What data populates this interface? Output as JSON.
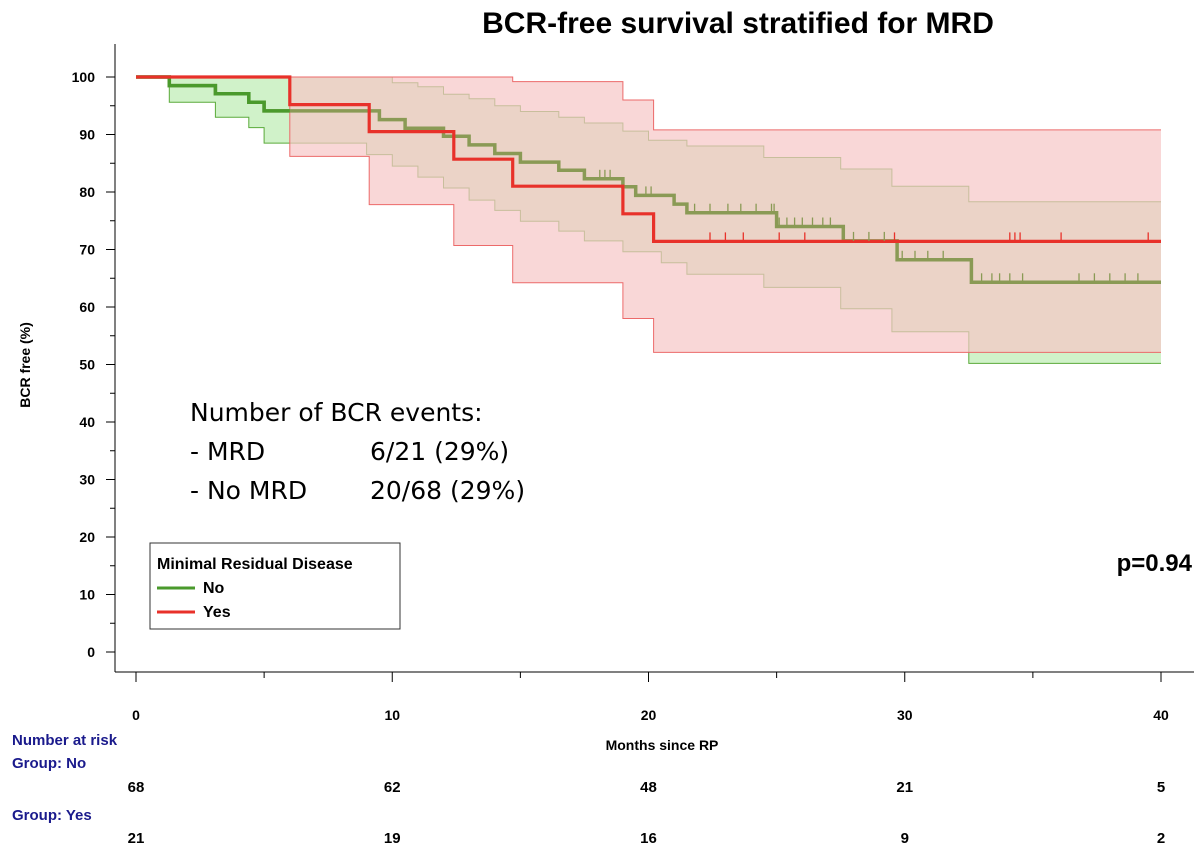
{
  "chart_data": {
    "type": "line",
    "subtype": "kaplan-meier step",
    "title": "BCR-free survival stratified for MRD",
    "xlabel": "Months since RP",
    "ylabel": "BCR free (%)",
    "xlim": [
      0,
      40
    ],
    "ylim": [
      0,
      100
    ],
    "x_ticks": [
      "0",
      "10",
      "20",
      "30",
      "40"
    ],
    "y_ticks": [
      "0",
      "10",
      "20",
      "30",
      "40",
      "50",
      "60",
      "70",
      "80",
      "90",
      "100"
    ],
    "grid": false,
    "legend": {
      "title": "Minimal Residual Disease",
      "placement": "bottom-left",
      "entries": [
        {
          "label": "No",
          "color": "#4a9a2c"
        },
        {
          "label": "Yes",
          "color": "#e8312a"
        }
      ]
    },
    "series": [
      {
        "name": "No",
        "color": "#4a9a2c",
        "line_color": "#8a9a55",
        "ci_fill": "#c8f0c0",
        "ci_stroke": "#5aaa3a",
        "steps": [
          [
            0,
            100
          ],
          [
            1.3,
            98.5
          ],
          [
            3.1,
            97.1
          ],
          [
            4.4,
            95.6
          ],
          [
            5.0,
            94.1
          ],
          [
            9.0,
            94.1
          ],
          [
            9.5,
            92.6
          ],
          [
            10.5,
            91.1
          ],
          [
            12.0,
            89.7
          ],
          [
            13.0,
            88.2
          ],
          [
            14.0,
            86.7
          ],
          [
            15.0,
            85.2
          ],
          [
            16.5,
            83.8
          ],
          [
            17.5,
            82.3
          ],
          [
            19.0,
            80.9
          ],
          [
            19.5,
            79.4
          ],
          [
            20.3,
            79.4
          ],
          [
            21.0,
            77.9
          ],
          [
            21.5,
            76.4
          ],
          [
            24.5,
            76.4
          ],
          [
            25.0,
            74.0
          ],
          [
            27.3,
            74.0
          ],
          [
            27.6,
            71.5
          ],
          [
            29.5,
            71.5
          ],
          [
            29.7,
            68.2
          ],
          [
            32.5,
            68.2
          ],
          [
            32.6,
            64.3
          ],
          [
            40,
            64.3
          ]
        ],
        "ci_upper": [
          [
            0,
            100
          ],
          [
            1.3,
            100
          ],
          [
            5.0,
            100
          ],
          [
            6.0,
            100
          ],
          [
            9.0,
            100
          ],
          [
            10.0,
            99.0
          ],
          [
            11.0,
            98.3
          ],
          [
            12.0,
            97.0
          ],
          [
            13.0,
            96.2
          ],
          [
            14.0,
            95.0
          ],
          [
            15.0,
            94.0
          ],
          [
            16.5,
            93.0
          ],
          [
            17.5,
            92.0
          ],
          [
            19.0,
            90.6
          ],
          [
            20.0,
            89.0
          ],
          [
            21.5,
            88.0
          ],
          [
            24.5,
            86.0
          ],
          [
            27.5,
            84.0
          ],
          [
            29.5,
            81.0
          ],
          [
            32.5,
            78.3
          ],
          [
            40,
            78.3
          ]
        ],
        "ci_lower": [
          [
            0,
            100
          ],
          [
            1.3,
            95.6
          ],
          [
            3.1,
            93.0
          ],
          [
            4.4,
            91.2
          ],
          [
            5.0,
            88.5
          ],
          [
            6.0,
            88.5
          ],
          [
            9.0,
            86.5
          ],
          [
            10.0,
            84.5
          ],
          [
            11.0,
            82.6
          ],
          [
            12.0,
            80.7
          ],
          [
            13.0,
            78.6
          ],
          [
            14.0,
            76.8
          ],
          [
            15.0,
            74.9
          ],
          [
            16.5,
            73.2
          ],
          [
            17.5,
            71.5
          ],
          [
            19.0,
            69.6
          ],
          [
            20.5,
            67.7
          ],
          [
            21.5,
            65.7
          ],
          [
            24.5,
            63.4
          ],
          [
            27.5,
            59.7
          ],
          [
            29.5,
            55.7
          ],
          [
            32.5,
            50.2
          ],
          [
            40,
            50.2
          ]
        ],
        "censor_x": [
          18.1,
          18.3,
          18.5,
          19.9,
          20.1,
          21.8,
          22.4,
          23.1,
          23.6,
          24.2,
          24.8,
          24.9,
          25.1,
          25.4,
          25.7,
          26.0,
          26.4,
          26.8,
          27.1,
          28.0,
          28.6,
          29.2,
          29.9,
          30.4,
          30.9,
          31.5,
          33.0,
          33.4,
          33.7,
          34.1,
          34.6,
          36.8,
          37.4,
          38.0,
          38.6,
          39.1
        ]
      },
      {
        "name": "Yes",
        "color": "#e8312a",
        "line_color": "#e8312a",
        "ci_fill": "#f6c6c6",
        "ci_stroke": "#ec6a6a",
        "steps": [
          [
            0,
            100
          ],
          [
            6.0,
            100
          ],
          [
            6.0,
            95.2
          ],
          [
            9.1,
            95.2
          ],
          [
            9.1,
            90.5
          ],
          [
            12.4,
            90.5
          ],
          [
            12.4,
            85.7
          ],
          [
            14.7,
            85.7
          ],
          [
            14.7,
            81.0
          ],
          [
            19.0,
            81.0
          ],
          [
            19.0,
            76.2
          ],
          [
            20.2,
            76.2
          ],
          [
            20.2,
            71.4
          ],
          [
            40,
            71.4
          ]
        ],
        "ci_upper": [
          [
            0,
            100
          ],
          [
            14.7,
            100
          ],
          [
            14.7,
            99.2
          ],
          [
            19.0,
            99.2
          ],
          [
            19.0,
            96.0
          ],
          [
            20.2,
            96.0
          ],
          [
            20.2,
            90.8
          ],
          [
            40,
            90.8
          ]
        ],
        "ci_lower": [
          [
            0,
            100
          ],
          [
            6.0,
            100
          ],
          [
            6.0,
            86.2
          ],
          [
            9.1,
            86.2
          ],
          [
            9.1,
            77.8
          ],
          [
            12.4,
            77.8
          ],
          [
            12.4,
            70.7
          ],
          [
            14.7,
            70.7
          ],
          [
            14.7,
            64.2
          ],
          [
            19.0,
            64.2
          ],
          [
            19.0,
            58.0
          ],
          [
            20.2,
            58.0
          ],
          [
            20.2,
            52.1
          ],
          [
            40,
            52.1
          ]
        ],
        "censor_x": [
          22.4,
          23.0,
          23.7,
          25.1,
          26.1,
          29.6,
          34.1,
          34.3,
          34.5,
          36.1,
          39.5
        ]
      }
    ],
    "annotations": {
      "events_title": "Number of BCR events:",
      "events": [
        {
          "label": "-  MRD",
          "value": "6/21 (29%)"
        },
        {
          "label": "-  No MRD",
          "value": "20/68 (29%)"
        }
      ],
      "p_value": "p=0.94"
    },
    "risk_table": {
      "heading": "Number at risk",
      "x": [
        0,
        10,
        20,
        30,
        40
      ],
      "groups": [
        {
          "label": "Group: No",
          "counts": [
            "68",
            "62",
            "48",
            "21",
            "5"
          ]
        },
        {
          "label": "Group: Yes",
          "counts": [
            "21",
            "19",
            "16",
            "9",
            "2"
          ]
        }
      ]
    }
  }
}
